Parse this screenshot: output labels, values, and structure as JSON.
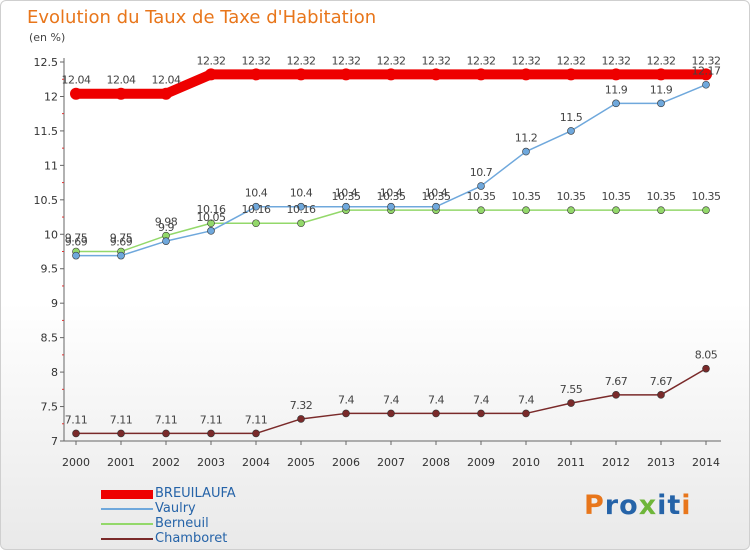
{
  "title": "Evolution du Taux de Taxe d'Habitation",
  "subtitle": "(en %)",
  "brand": {
    "text": "Proxiti",
    "letters": [
      "P",
      "r",
      "o",
      "x",
      "i",
      "t",
      "i"
    ],
    "colors": [
      "#e8761b",
      "#2563a8",
      "#2563a8",
      "#6fb63a",
      "#2563a8",
      "#2563a8",
      "#e8761b"
    ]
  },
  "chart_data": {
    "type": "line",
    "x": [
      2000,
      2001,
      2002,
      2003,
      2004,
      2005,
      2006,
      2007,
      2008,
      2009,
      2010,
      2011,
      2012,
      2013,
      2014
    ],
    "ylim": [
      7,
      12.5
    ],
    "yticks": [
      7,
      7.5,
      8,
      8.5,
      9,
      9.5,
      10,
      10.5,
      11,
      11.5,
      12,
      12.5
    ],
    "grid": false,
    "legend_position": "bottom-left",
    "series": [
      {
        "name": "BREUILAUFA",
        "color": "#ee0000",
        "width": 10,
        "values": [
          12.04,
          12.04,
          12.04,
          12.32,
          12.32,
          12.32,
          12.32,
          12.32,
          12.32,
          12.32,
          12.32,
          12.32,
          12.32,
          12.32,
          12.32
        ],
        "labels": [
          "12.04",
          "12.04",
          "12.04",
          "12.32",
          "12.32",
          "12.32",
          "12.32",
          "12.32",
          "12.32",
          "12.32",
          "12.32",
          "12.32",
          "12.32",
          "12.32",
          "12.32"
        ]
      },
      {
        "name": "Vaulry",
        "color": "#6fa8dc",
        "width": 1.5,
        "values": [
          9.69,
          9.69,
          9.9,
          10.05,
          10.4,
          10.4,
          10.4,
          10.4,
          10.4,
          10.7,
          11.2,
          11.5,
          11.9,
          11.9,
          12.17
        ],
        "labels": [
          "9.69",
          "9.69",
          "9.9",
          "10.05",
          "10.4",
          "10.4",
          "10.4",
          "10.4",
          "10.4",
          "10.7",
          "11.2",
          "11.5",
          "11.9",
          "11.9",
          "12.17"
        ]
      },
      {
        "name": "Berneuil",
        "color": "#93d86a",
        "width": 1.5,
        "values": [
          9.75,
          9.75,
          9.98,
          10.16,
          10.16,
          10.16,
          10.35,
          10.35,
          10.35,
          10.35,
          10.35,
          10.35,
          10.35,
          10.35,
          10.35
        ],
        "labels": [
          "9.75",
          "9.75",
          "9.98",
          "10.16",
          "10.16",
          "10.16",
          "10.35",
          "10.35",
          "10.35",
          "10.35",
          "10.35",
          "10.35",
          "10.35",
          "10.35",
          "10.35"
        ]
      },
      {
        "name": "Chamboret",
        "color": "#7a2a2a",
        "width": 1.5,
        "values": [
          7.11,
          7.11,
          7.11,
          7.11,
          7.11,
          7.32,
          7.4,
          7.4,
          7.4,
          7.4,
          7.4,
          7.55,
          7.67,
          7.67,
          8.05
        ],
        "labels": [
          "7.11",
          "7.11",
          "7.11",
          "7.11",
          "7.11",
          "7.32",
          "7.4",
          "7.4",
          "7.4",
          "7.4",
          "7.4",
          "7.55",
          "7.67",
          "7.67",
          "8.05"
        ]
      }
    ]
  }
}
